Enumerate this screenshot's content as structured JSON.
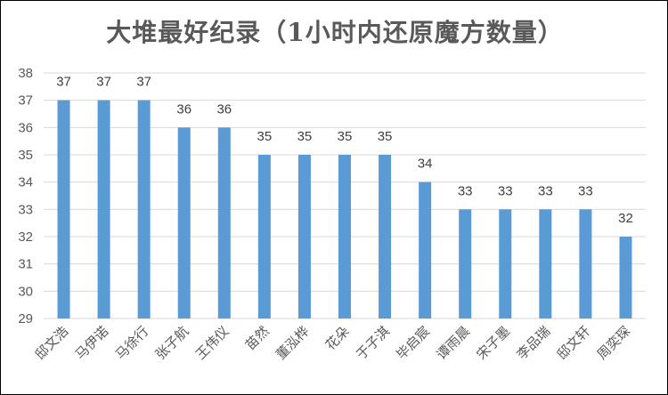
{
  "chart_data": {
    "type": "bar",
    "title": "大堆最好纪录（1小时内还原魔方数量）",
    "xlabel": "",
    "ylabel": "",
    "ylim": [
      29,
      38
    ],
    "yticks": [
      29,
      30,
      31,
      32,
      33,
      34,
      35,
      36,
      37,
      38
    ],
    "categories": [
      "邸文浩",
      "马伊诺",
      "马徐行",
      "张子航",
      "王伟仪",
      "苗然",
      "董泓桦",
      "花朵",
      "于子淇",
      "毕启宸",
      "谭雨晨",
      "宋子墨",
      "李品瑞",
      "邸文轩",
      "周奕琛"
    ],
    "values": [
      37,
      37,
      37,
      36,
      36,
      35,
      35,
      35,
      35,
      34,
      33,
      33,
      33,
      33,
      32
    ],
    "bar_color": "#5B9BD5",
    "grid": true,
    "grid_color": "#D9D9D9",
    "data_labels": true,
    "legend": "none"
  }
}
